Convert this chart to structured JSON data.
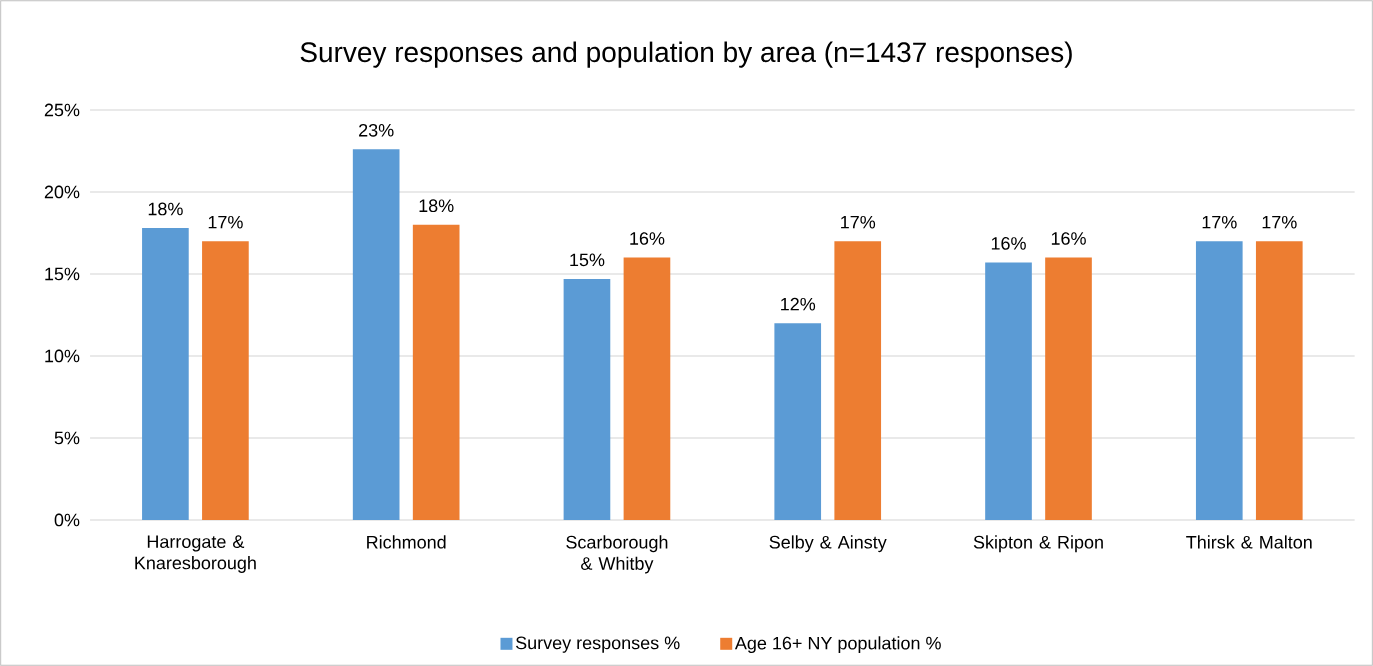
{
  "chart_data": {
    "type": "bar",
    "title": "Survey responses and population by area (n=1437 responses)",
    "categories": [
      "Harrogate & Knaresborough",
      "Richmond",
      "Scarborough & Whitby",
      "Selby & Ainsty",
      "Skipton & Ripon",
      "Thirsk & Malton"
    ],
    "series": [
      {
        "name": "Survey responses %",
        "color": "#5b9bd5",
        "values": [
          17.8,
          22.6,
          14.7,
          12.0,
          15.7,
          17.0
        ],
        "value_labels": [
          "18%",
          "23%",
          "15%",
          "12%",
          "16%",
          "17%"
        ]
      },
      {
        "name": "Age 16+ NY population %",
        "color": "#ed7d31",
        "values": [
          17.0,
          18.0,
          16.0,
          17.0,
          16.0,
          17.0
        ],
        "value_labels": [
          "17%",
          "18%",
          "16%",
          "17%",
          "16%",
          "17%"
        ]
      }
    ],
    "ylim": [
      0,
      25
    ],
    "yticks": [
      {
        "value": 0,
        "label": "0%"
      },
      {
        "value": 5,
        "label": "5%"
      },
      {
        "value": 10,
        "label": "10%"
      },
      {
        "value": 15,
        "label": "15%"
      },
      {
        "value": 20,
        "label": "20%"
      },
      {
        "value": 25,
        "label": "25%"
      }
    ],
    "grid": "y",
    "legend": "bottom"
  }
}
